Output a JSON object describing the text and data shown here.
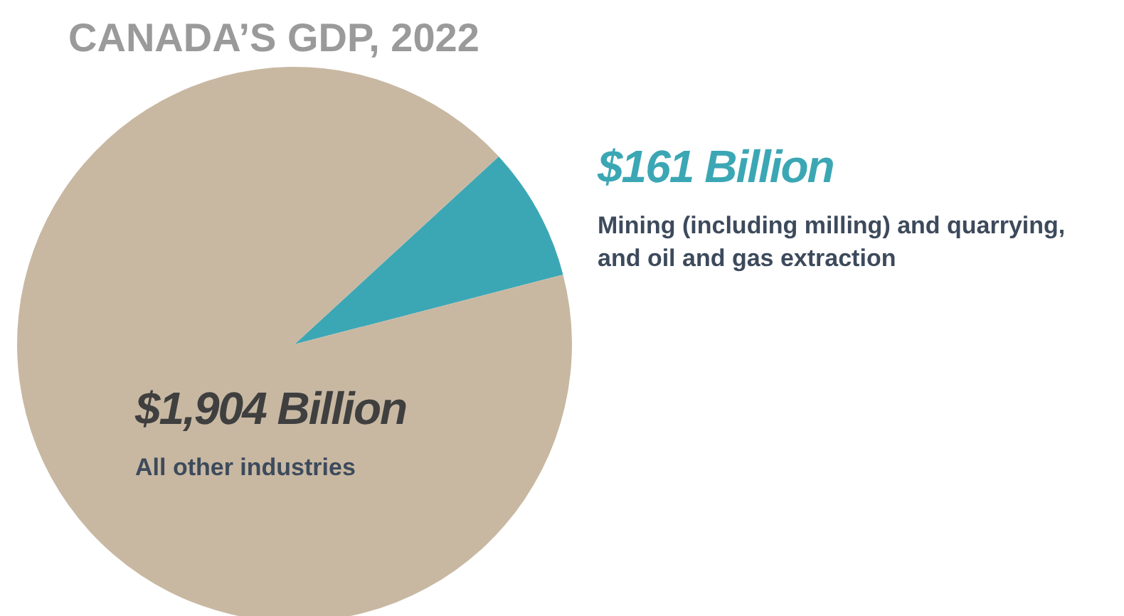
{
  "chart_data": {
    "type": "pie",
    "title": "CANADA’S GDP, 2022",
    "categories": [
      "Mining (including milling) and quarrying, and oil and gas extraction",
      "All other industries"
    ],
    "values": [
      161,
      1904
    ],
    "colors": [
      "#3ca7b4",
      "#c8b8a2"
    ],
    "value_labels": [
      "$161 Billion",
      "$1,904 Billion"
    ]
  }
}
